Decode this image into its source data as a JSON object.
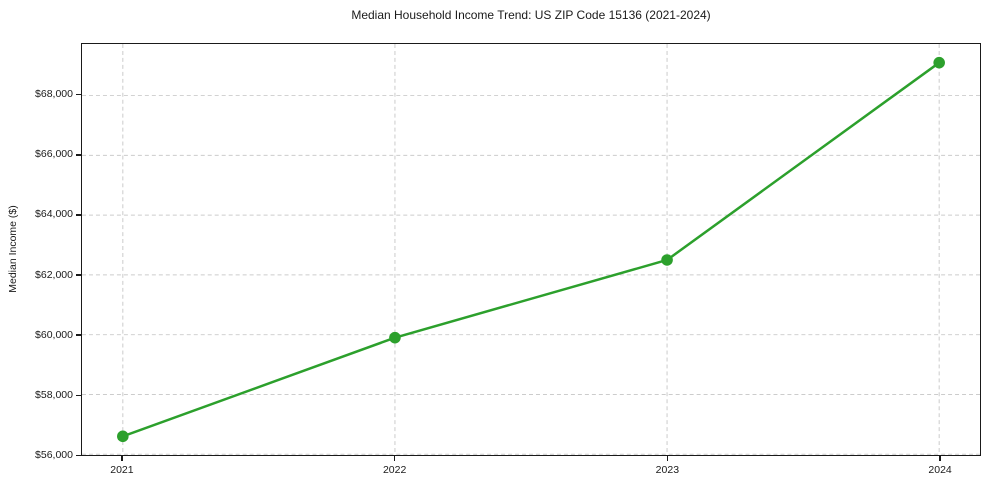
{
  "chart_data": {
    "type": "line",
    "title": "Median Household Income Trend: US ZIP Code 15136 (2021-2024)",
    "xlabel": "",
    "ylabel": "Median Income ($)",
    "series": [
      {
        "name": "Median Household Income",
        "x": [
          2021,
          2022,
          2023,
          2024
        ],
        "values": [
          56600,
          59900,
          62500,
          69100
        ]
      }
    ],
    "xticks": [
      2021,
      2022,
      2023,
      2024
    ],
    "xtick_labels": [
      "2021",
      "2022",
      "2023",
      "2024"
    ],
    "yticks": [
      56000,
      58000,
      60000,
      62000,
      64000,
      66000,
      68000
    ],
    "ytick_labels": [
      "$56,000",
      "$58,000",
      "$60,000",
      "$62,000",
      "$64,000",
      "$66,000",
      "$68,000"
    ],
    "xlim": [
      2020.85,
      2024.15
    ],
    "ylim": [
      55975,
      69725
    ],
    "grid": true,
    "legend_position": "none",
    "style": {
      "line_color": "#2ca02c",
      "marker": "circle",
      "grid_color": "#cccccc",
      "text_color": "#1a1a1a",
      "spine_color": "#1a1a1a",
      "background": "#ffffff"
    }
  }
}
